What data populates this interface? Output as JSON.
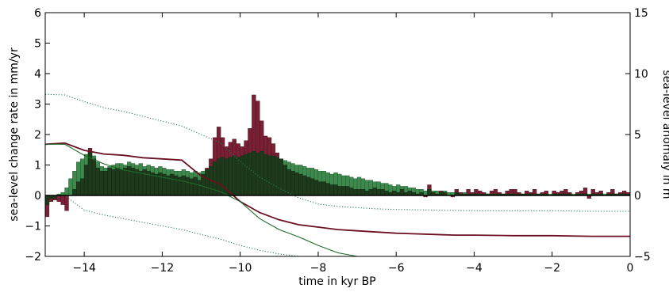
{
  "chart_data": {
    "type": "bar",
    "title": "",
    "xlabel": "time in kyr BP",
    "ylabel": "sea-level change rate in mm/yr",
    "y2label": "sea-level anomaly in m",
    "xlim": [
      -15,
      0
    ],
    "ylim": [
      -2,
      6
    ],
    "y2lim": [
      -5,
      15
    ],
    "xticks": [
      -14,
      -12,
      -10,
      -8,
      -6,
      -4,
      -2,
      0
    ],
    "yticks": [
      -2,
      -1,
      0,
      1,
      2,
      3,
      4,
      5,
      6
    ],
    "y2ticks": [
      -5,
      0,
      5,
      10,
      15
    ],
    "grid": false,
    "bin_width": 0.1,
    "colors": {
      "red_bar": "#7a2035",
      "green_bar": "#3e8a4e",
      "green_line": "#1f6b2a",
      "red_line": "#6b0f22",
      "dotted": "#2e7d60",
      "overlap": "#1e3a1c"
    },
    "series": [
      {
        "kind": "bar",
        "x_start": -15.0,
        "values": [
          -0.7,
          -0.2,
          -0.15,
          -0.2,
          -0.3,
          -0.5,
          0.0,
          0.2,
          0.45,
          0.55,
          1.0,
          1.55,
          1.2,
          0.9,
          0.8,
          0.8,
          0.9,
          0.85,
          0.9,
          0.85,
          0.9,
          0.95,
          0.9,
          0.85,
          0.8,
          0.85,
          0.8,
          0.75,
          0.7,
          0.75,
          0.7,
          0.65,
          0.7,
          0.65,
          0.6,
          0.65,
          0.6,
          0.55,
          0.6,
          0.5,
          0.7,
          0.9,
          1.2,
          1.9,
          2.25,
          1.9,
          1.6,
          1.75,
          1.85,
          1.7,
          1.6,
          1.8,
          2.2,
          3.3,
          3.1,
          2.45,
          1.95,
          1.9,
          1.7,
          1.4,
          1.2,
          1.0,
          0.85,
          0.8,
          0.75,
          0.7,
          0.65,
          0.6,
          0.55,
          0.5,
          0.45,
          0.45,
          0.4,
          0.35,
          0.35,
          0.3,
          0.3,
          0.3,
          0.25,
          0.2,
          0.2,
          0.2,
          0.15,
          0.2,
          0.25,
          0.2,
          0.2,
          0.15,
          0.1,
          0.15,
          0.1,
          0.2,
          0.1,
          0.15,
          0.1,
          0.05,
          0.1,
          -0.05,
          0.35,
          0.1,
          0.05,
          0.15,
          0.1,
          0.0,
          -0.05,
          0.2,
          0.1,
          0.05,
          0.2,
          0.1,
          0.2,
          0.15,
          0.1,
          0.05,
          0.15,
          0.2,
          0.1,
          0.05,
          0.15,
          0.2,
          0.2,
          0.1,
          0.05,
          0.15,
          0.1,
          0.2,
          0.05,
          0.1,
          0.15,
          0.0,
          0.15,
          0.1,
          0.15,
          0.2,
          0.1,
          0.0,
          0.1,
          0.15,
          0.25,
          -0.1,
          0.2,
          0.1,
          0.15,
          0.0,
          0.1,
          0.2,
          0.05,
          0.1,
          0.15,
          0.1
        ]
      },
      {
        "kind": "bar",
        "x_start": -15.0,
        "values": [
          -0.3,
          -0.1,
          -0.1,
          0.05,
          0.1,
          0.25,
          0.55,
          0.8,
          1.1,
          1.2,
          1.35,
          1.45,
          1.3,
          1.1,
          0.95,
          0.9,
          0.95,
          1.0,
          1.05,
          1.05,
          1.0,
          1.1,
          1.05,
          1.0,
          1.05,
          0.95,
          1.0,
          0.95,
          0.9,
          0.95,
          0.9,
          0.85,
          0.85,
          0.8,
          0.8,
          0.85,
          0.8,
          0.75,
          0.8,
          0.75,
          0.8,
          0.85,
          0.95,
          1.1,
          1.2,
          1.25,
          1.2,
          1.25,
          1.3,
          1.25,
          1.3,
          1.35,
          1.4,
          1.45,
          1.4,
          1.45,
          1.35,
          1.3,
          1.3,
          1.25,
          1.2,
          1.15,
          1.1,
          1.05,
          1.0,
          1.0,
          0.95,
          0.9,
          0.9,
          0.85,
          0.8,
          0.8,
          0.75,
          0.7,
          0.75,
          0.7,
          0.65,
          0.65,
          0.6,
          0.55,
          0.6,
          0.55,
          0.5,
          0.5,
          0.45,
          0.45,
          0.4,
          0.4,
          0.35,
          0.3,
          0.35,
          0.3,
          0.3,
          0.25,
          0.25,
          0.2,
          0.2,
          0.15,
          0.2,
          0.15,
          0.15,
          0.1,
          0.15,
          0.1,
          0.1,
          0.1,
          0.05,
          0.1,
          0.05,
          0.05,
          0.05,
          0.05,
          0.05,
          0.05,
          0.05,
          0.05,
          0.05,
          0.05,
          0.05,
          0.05,
          0.05,
          0.05,
          0.05,
          0.05,
          0.05,
          0.05,
          0.05,
          0.05,
          0.05,
          0.05,
          0.05,
          0.05,
          0.05,
          0.05,
          0.05,
          0.05,
          0.05,
          0.05,
          0.05,
          0.05,
          0.05,
          0.05,
          0.05,
          0.05,
          0.05,
          0.05,
          0.05,
          0.05,
          0.05,
          0.05
        ]
      },
      {
        "kind": "line",
        "axis": "right",
        "x": [
          -15,
          -14.5,
          -14,
          -13.5,
          -13,
          -12.5,
          -12,
          -11.5,
          -11,
          -10.5,
          -10,
          -9.5,
          -9,
          -8.5,
          -8,
          -7.5,
          -7,
          -6.5,
          -6,
          -5.5,
          -5,
          -4.5,
          -4,
          -3,
          -2,
          -1,
          0
        ],
        "y": [
          4.2,
          4.3,
          3.7,
          3.4,
          3.3,
          3.1,
          3.0,
          2.9,
          1.6,
          0.9,
          -0.5,
          -1.4,
          -2.0,
          -2.4,
          -2.6,
          -2.8,
          -2.9,
          -3.0,
          -3.1,
          -3.15,
          -3.2,
          -3.25,
          -3.25,
          -3.3,
          -3.3,
          -3.35,
          -3.35
        ]
      },
      {
        "kind": "line",
        "axis": "right",
        "x": [
          -15,
          -14.5,
          -14,
          -13.5,
          -13,
          -12.5,
          -12,
          -11.5,
          -11,
          -10.5,
          -10,
          -9.5,
          -9,
          -8.5,
          -8,
          -7.5,
          -7,
          -6.5,
          -6,
          -5.5,
          -5,
          -4.5,
          -4,
          -3,
          -2,
          -1,
          0
        ],
        "y": [
          4.2,
          4.2,
          3.3,
          2.6,
          2.1,
          1.8,
          1.5,
          1.2,
          0.8,
          0.3,
          -0.5,
          -1.9,
          -2.8,
          -3.4,
          -4.1,
          -4.7,
          -5.0,
          -5.3,
          -5.5,
          -5.6,
          -5.65,
          -5.7,
          -5.75,
          -5.8,
          -5.8,
          -5.85,
          -5.85
        ]
      },
      {
        "kind": "line",
        "axis": "right",
        "style": "dotted",
        "x": [
          -15,
          -14.5,
          -14,
          -13.5,
          -13,
          -12.5,
          -12,
          -11.5,
          -11,
          -10.5,
          -10,
          -9.5,
          -9,
          -8.5,
          -8,
          -7.5,
          -7,
          -6.5,
          -6,
          -5,
          -4,
          -3,
          -2,
          -1,
          0
        ],
        "y": [
          8.3,
          8.25,
          7.7,
          7.2,
          6.9,
          6.5,
          6.1,
          5.7,
          5.0,
          4.3,
          2.8,
          1.5,
          0.6,
          -0.2,
          -0.7,
          -0.9,
          -1.0,
          -1.1,
          -1.15,
          -1.2,
          -1.25,
          -1.25,
          -1.25,
          -1.3,
          -1.3
        ]
      },
      {
        "kind": "line",
        "axis": "right",
        "style": "dotted",
        "x": [
          -15,
          -14.5,
          -14,
          -13.5,
          -13,
          -12.5,
          -12,
          -11.5,
          -11,
          -10.5,
          -10,
          -9.5,
          -9,
          -8.5,
          -8
        ],
        "y": [
          0.0,
          0.0,
          -1.2,
          -1.6,
          -1.9,
          -2.2,
          -2.5,
          -2.8,
          -3.2,
          -3.6,
          -4.1,
          -4.5,
          -4.8,
          -5.0,
          -5.1
        ]
      }
    ]
  }
}
